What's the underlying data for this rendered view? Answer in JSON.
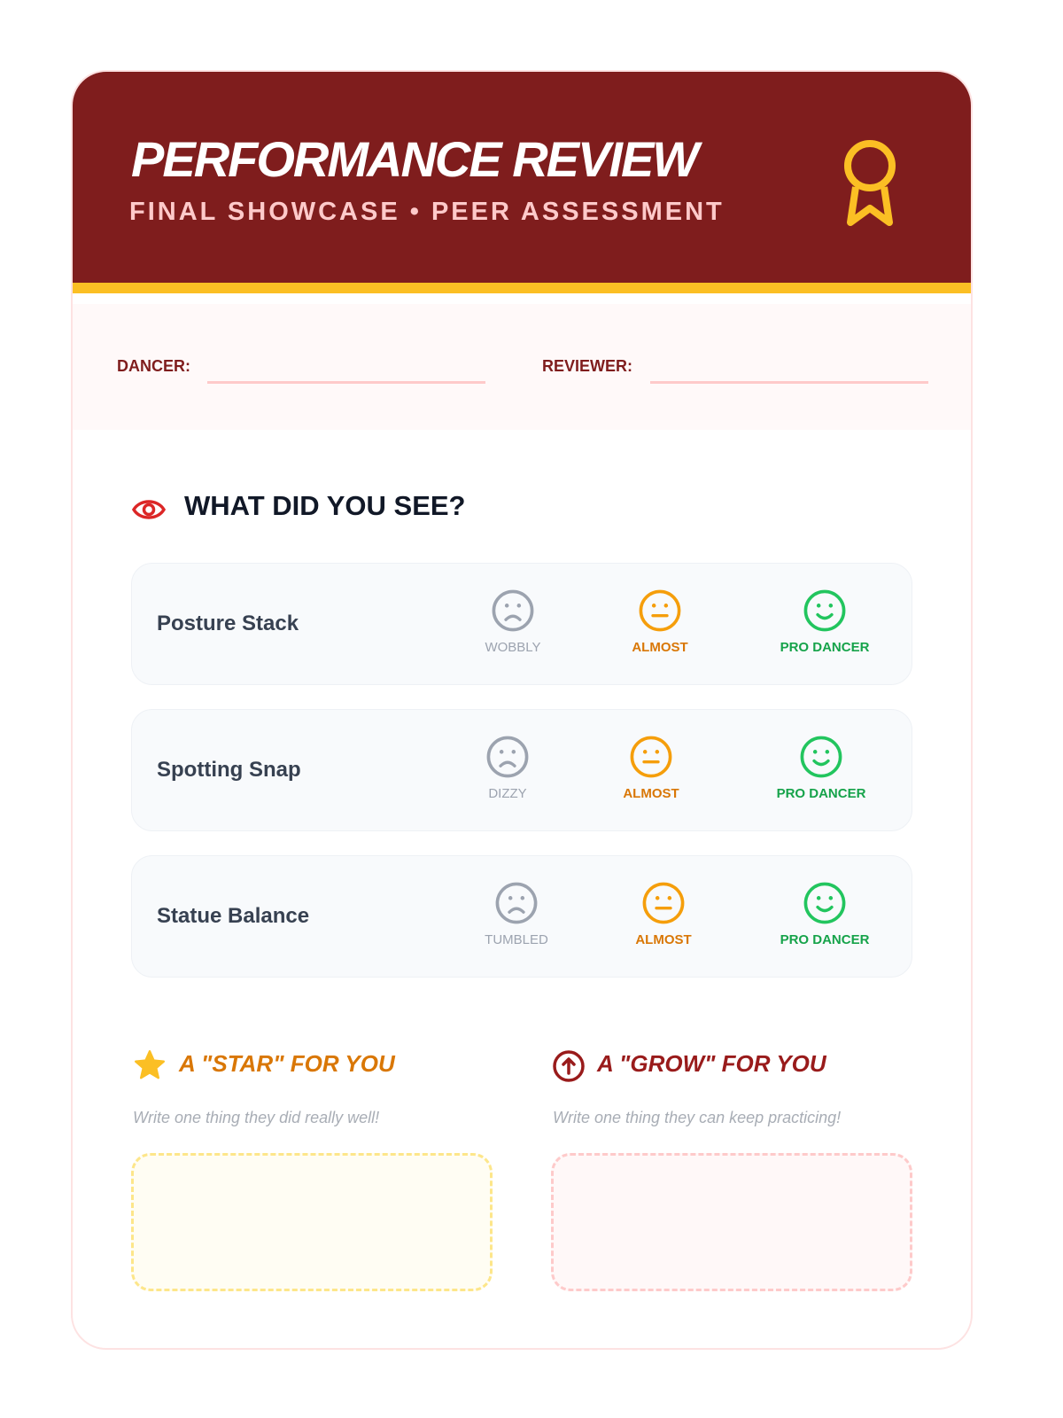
{
  "header": {
    "title": "PERFORMANCE REVIEW",
    "subtitle": "FINAL SHOWCASE • PEER ASSESSMENT",
    "icon": "award-ribbon-icon"
  },
  "fields": {
    "dancer_label": "DANCER:",
    "dancer_value": "",
    "reviewer_label": "REVIEWER:",
    "reviewer_value": ""
  },
  "section": {
    "title": "WHAT DID YOU SEE?",
    "icon": "eye-icon"
  },
  "criteria": [
    {
      "label": "Posture Stack",
      "options": [
        "WOBBLY",
        "ALMOST",
        "PRO DANCER"
      ]
    },
    {
      "label": "Spotting Snap",
      "options": [
        "DIZZY",
        "ALMOST",
        "PRO DANCER"
      ]
    },
    {
      "label": "Statue Balance",
      "options": [
        "TUMBLED",
        "ALMOST",
        "PRO DANCER"
      ]
    }
  ],
  "feedback": {
    "star": {
      "title": "A \"STAR\" FOR YOU",
      "hint": "Write one thing they did really well!",
      "value": "",
      "icon": "star-icon"
    },
    "grow": {
      "title": "A \"GROW\" FOR YOU",
      "hint": "Write one thing they can keep practicing!",
      "value": "",
      "icon": "arrow-up-circle-icon"
    }
  },
  "colors": {
    "header": "#7f1d1d",
    "accent": "#fbbf24",
    "sad": "#9ca3af",
    "neutral": "#f59e0b",
    "happy": "#22c55e"
  }
}
